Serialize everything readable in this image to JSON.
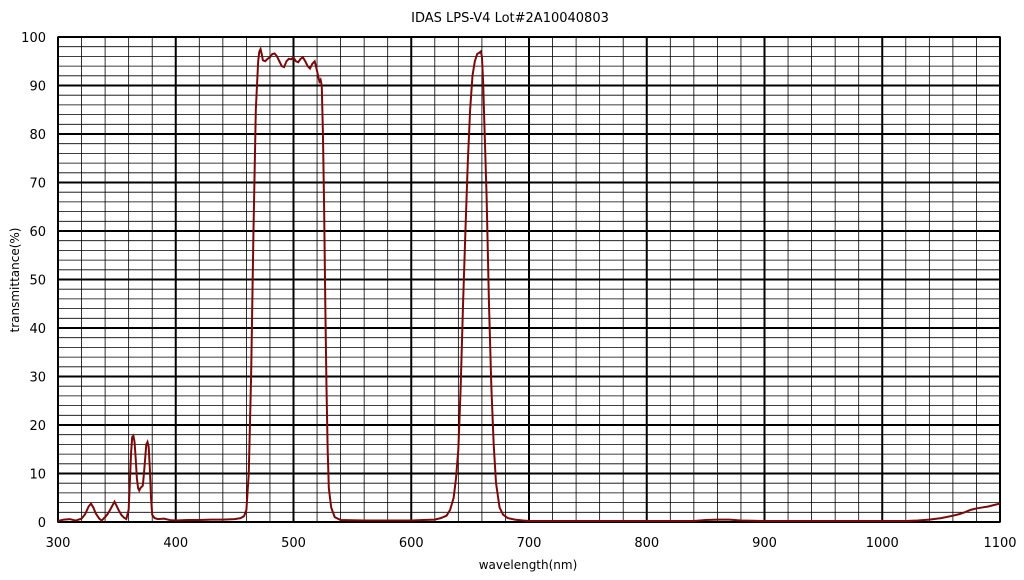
{
  "chart_data": {
    "type": "line",
    "title": "IDAS LPS-V4 Lot#2A10040803",
    "xlabel": "wavelength(nm)",
    "ylabel": "transmittance(%)",
    "xlim": [
      300,
      1100
    ],
    "ylim": [
      0,
      100
    ],
    "x_ticks": [
      "300",
      "400",
      "500",
      "600",
      "700",
      "800",
      "900",
      "1000",
      "1100"
    ],
    "y_ticks": [
      "0",
      "10",
      "20",
      "30",
      "40",
      "50",
      "60",
      "70",
      "80",
      "90",
      "100"
    ],
    "major_x_step": 100,
    "minor_x_step": 20,
    "major_y_step": 10,
    "minor_y_step": 2,
    "grid": true,
    "line_color": "#7a0a0a",
    "series": [
      {
        "values": [
          [
            300,
            0.2
          ],
          [
            305,
            0.5
          ],
          [
            310,
            0.6
          ],
          [
            315,
            0.3
          ],
          [
            320,
            0.7
          ],
          [
            323,
            1.6
          ],
          [
            326,
            3.2
          ],
          [
            328,
            3.8
          ],
          [
            330,
            3.0
          ],
          [
            332,
            1.8
          ],
          [
            335,
            0.7
          ],
          [
            337,
            0.3
          ],
          [
            340,
            1.0
          ],
          [
            342,
            1.6
          ],
          [
            344,
            2.4
          ],
          [
            346,
            3.3
          ],
          [
            348,
            4.2
          ],
          [
            350,
            3.2
          ],
          [
            352,
            2.2
          ],
          [
            354,
            1.4
          ],
          [
            356,
            0.9
          ],
          [
            358,
            0.6
          ],
          [
            360,
            2.5
          ],
          [
            361,
            8
          ],
          [
            362,
            14
          ],
          [
            363,
            17.5
          ],
          [
            364,
            17.8
          ],
          [
            365,
            16.5
          ],
          [
            366,
            13
          ],
          [
            367,
            9
          ],
          [
            368,
            7
          ],
          [
            369,
            6.5
          ],
          [
            370,
            7
          ],
          [
            372,
            7.5
          ],
          [
            373,
            10
          ],
          [
            374,
            13
          ],
          [
            375,
            16
          ],
          [
            376,
            16.5
          ],
          [
            377,
            15.5
          ],
          [
            378,
            11
          ],
          [
            379,
            5
          ],
          [
            380,
            1.5
          ],
          [
            382,
            0.8
          ],
          [
            385,
            0.6
          ],
          [
            390,
            0.7
          ],
          [
            395,
            0.4
          ],
          [
            400,
            0.3
          ],
          [
            410,
            0.4
          ],
          [
            420,
            0.4
          ],
          [
            430,
            0.5
          ],
          [
            440,
            0.5
          ],
          [
            450,
            0.6
          ],
          [
            455,
            0.8
          ],
          [
            458,
            1.2
          ],
          [
            460,
            2.5
          ],
          [
            462,
            10
          ],
          [
            464,
            30
          ],
          [
            466,
            60
          ],
          [
            468,
            85
          ],
          [
            470,
            95
          ],
          [
            471,
            97
          ],
          [
            472,
            97.5
          ],
          [
            473,
            96.5
          ],
          [
            474,
            95.2
          ],
          [
            476,
            95.0
          ],
          [
            478,
            95.5
          ],
          [
            480,
            95.8
          ],
          [
            482,
            96.5
          ],
          [
            484,
            96.6
          ],
          [
            486,
            96.0
          ],
          [
            488,
            95.0
          ],
          [
            490,
            94.0
          ],
          [
            492,
            93.8
          ],
          [
            494,
            95.0
          ],
          [
            496,
            95.5
          ],
          [
            498,
            95.4
          ],
          [
            500,
            95.8
          ],
          [
            502,
            95.0
          ],
          [
            504,
            94.8
          ],
          [
            506,
            95.5
          ],
          [
            508,
            95.8
          ],
          [
            510,
            95.0
          ],
          [
            512,
            94.0
          ],
          [
            514,
            93.5
          ],
          [
            516,
            94.5
          ],
          [
            518,
            95.0
          ],
          [
            520,
            93.0
          ],
          [
            522,
            90.8
          ],
          [
            523,
            91.2
          ],
          [
            524,
            90
          ],
          [
            525,
            80
          ],
          [
            526,
            65
          ],
          [
            527,
            45
          ],
          [
            528,
            28
          ],
          [
            529,
            15
          ],
          [
            530,
            7
          ],
          [
            532,
            3
          ],
          [
            535,
            1.0
          ],
          [
            540,
            0.4
          ],
          [
            560,
            0.3
          ],
          [
            580,
            0.3
          ],
          [
            600,
            0.3
          ],
          [
            610,
            0.4
          ],
          [
            620,
            0.5
          ],
          [
            625,
            0.8
          ],
          [
            630,
            1.3
          ],
          [
            633,
            2.5
          ],
          [
            636,
            5
          ],
          [
            638,
            9
          ],
          [
            640,
            15
          ],
          [
            642,
            28
          ],
          [
            644,
            45
          ],
          [
            646,
            60
          ],
          [
            648,
            74
          ],
          [
            650,
            85
          ],
          [
            652,
            92
          ],
          [
            654,
            95
          ],
          [
            656,
            96.5
          ],
          [
            658,
            96.8
          ],
          [
            659,
            97.0
          ],
          [
            660,
            96
          ],
          [
            661,
            91
          ],
          [
            662,
            83
          ],
          [
            664,
            67
          ],
          [
            666,
            45
          ],
          [
            668,
            28
          ],
          [
            670,
            16
          ],
          [
            672,
            8
          ],
          [
            675,
            3
          ],
          [
            678,
            1.5
          ],
          [
            682,
            0.8
          ],
          [
            688,
            0.5
          ],
          [
            695,
            0.3
          ],
          [
            700,
            0.2
          ],
          [
            750,
            0.2
          ],
          [
            800,
            0.2
          ],
          [
            840,
            0.2
          ],
          [
            850,
            0.4
          ],
          [
            860,
            0.5
          ],
          [
            870,
            0.5
          ],
          [
            880,
            0.3
          ],
          [
            900,
            0.2
          ],
          [
            950,
            0.2
          ],
          [
            1000,
            0.2
          ],
          [
            1020,
            0.2
          ],
          [
            1030,
            0.3
          ],
          [
            1040,
            0.5
          ],
          [
            1050,
            0.8
          ],
          [
            1060,
            1.3
          ],
          [
            1065,
            1.6
          ],
          [
            1070,
            2.0
          ],
          [
            1075,
            2.5
          ],
          [
            1080,
            2.8
          ],
          [
            1085,
            3.0
          ],
          [
            1090,
            3.2
          ],
          [
            1095,
            3.5
          ],
          [
            1100,
            3.8
          ]
        ]
      }
    ]
  }
}
